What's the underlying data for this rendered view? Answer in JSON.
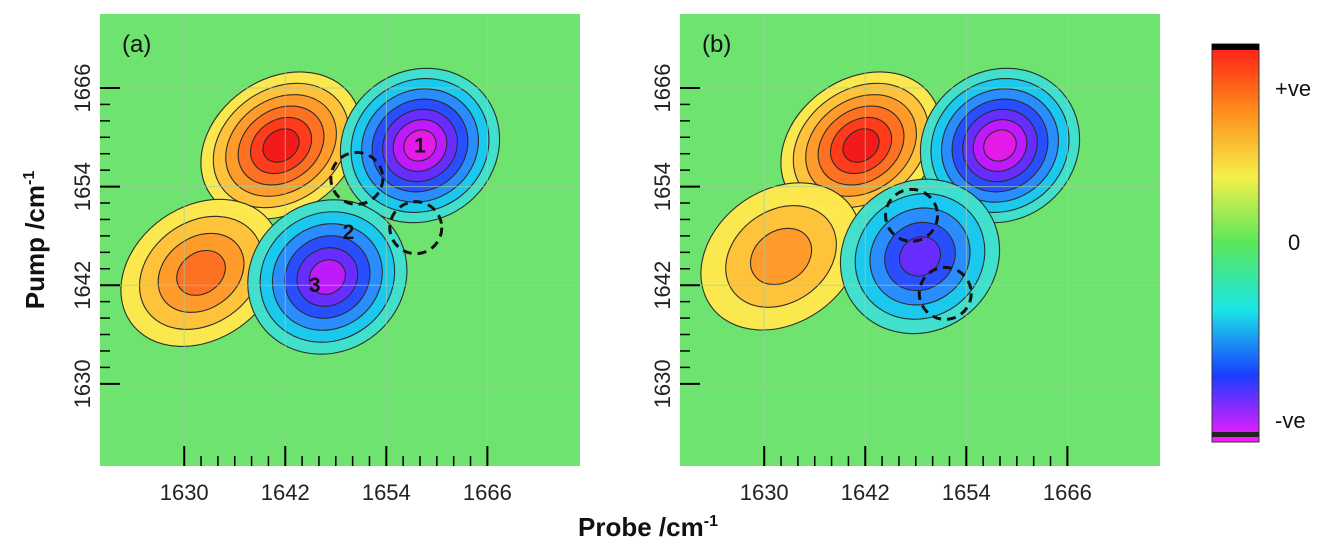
{
  "axes": {
    "x_title": "Probe /cm",
    "x_title_sup": "-1",
    "y_title": "Pump /cm",
    "y_title_sup": "-1"
  },
  "colorbar": {
    "top_label": "+ve",
    "mid_label": "0",
    "bottom_label": "-ve",
    "colors": [
      "#ff1a1a",
      "#ff8c1a",
      "#f5f04a",
      "#5ae65a",
      "#1ae6e6",
      "#1a3cff",
      "#ff1aff"
    ]
  },
  "chart_data": [
    {
      "type": "heatmap",
      "panel": "(a)",
      "x_ticks": [
        1630,
        1642,
        1654,
        1666
      ],
      "y_ticks": [
        1630,
        1642,
        1654,
        1666
      ],
      "xlim": [
        1620,
        1677
      ],
      "ylim": [
        1620,
        1675
      ],
      "features": [
        {
          "sign": "positive",
          "x": 1641.5,
          "y": 1659,
          "amp": 1.0
        },
        {
          "sign": "positive",
          "x": 1632,
          "y": 1643.5,
          "amp": 0.7
        },
        {
          "sign": "negative",
          "x": 1658,
          "y": 1659,
          "amp": 1.0
        },
        {
          "sign": "negative",
          "x": 1647,
          "y": 1643,
          "amp": 0.9
        }
      ],
      "peak_labels": [
        {
          "text": "1",
          "x": 1658,
          "y": 1659
        },
        {
          "text": "2",
          "x": 1649.5,
          "y": 1648.5
        },
        {
          "text": "3",
          "x": 1645.5,
          "y": 1642
        }
      ],
      "dashed_circles": [
        {
          "x": 1650.5,
          "y": 1655
        },
        {
          "x": 1657.5,
          "y": 1649
        }
      ]
    },
    {
      "type": "heatmap",
      "panel": "(b)",
      "x_ticks": [
        1630,
        1642,
        1654,
        1666
      ],
      "y_ticks": [
        1630,
        1642,
        1654,
        1666
      ],
      "xlim": [
        1620,
        1677
      ],
      "ylim": [
        1620,
        1675
      ],
      "features": [
        {
          "sign": "positive",
          "x": 1641.5,
          "y": 1659,
          "amp": 0.95
        },
        {
          "sign": "positive",
          "x": 1632,
          "y": 1645.5,
          "amp": 0.45
        },
        {
          "sign": "negative",
          "x": 1658,
          "y": 1659,
          "amp": 1.0
        },
        {
          "sign": "negative",
          "x": 1648.5,
          "y": 1645.5,
          "amp": 0.65
        }
      ],
      "peak_labels": [],
      "dashed_circles": [
        {
          "x": 1647.5,
          "y": 1650.5
        },
        {
          "x": 1651.5,
          "y": 1641
        }
      ]
    }
  ]
}
